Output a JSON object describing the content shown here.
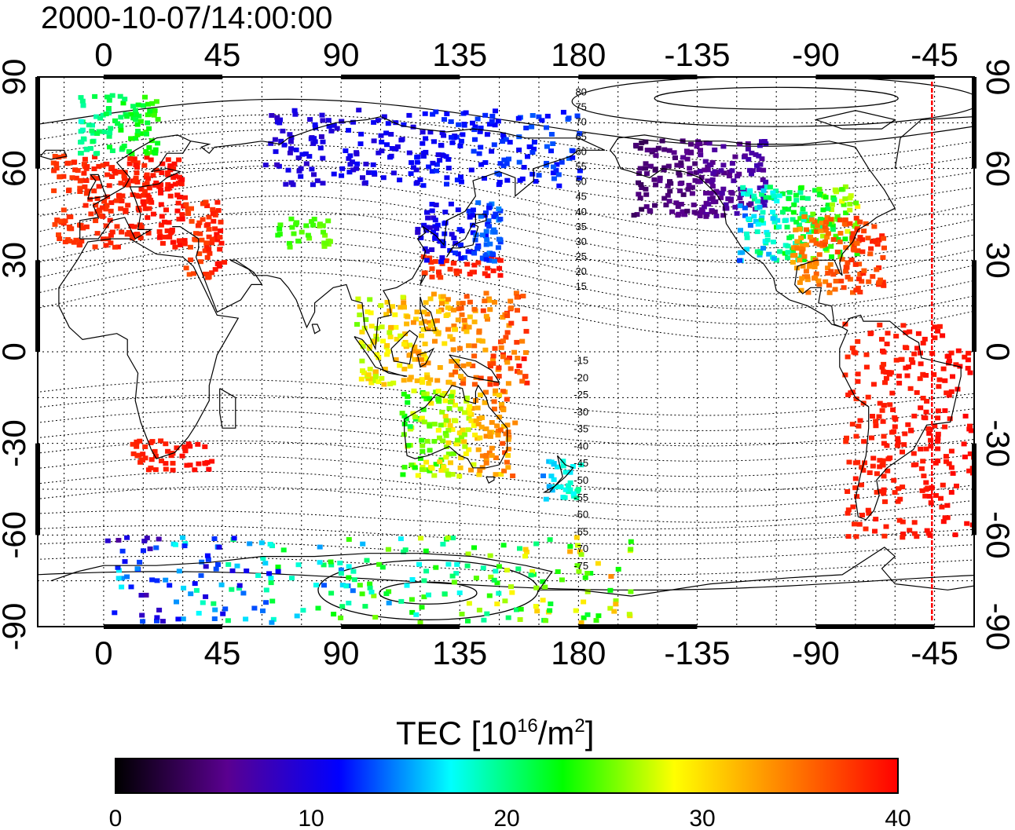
{
  "title": "2000-10-07/14:00:00",
  "map": {
    "lon_ticks": [
      "0",
      "45",
      "90",
      "135",
      "180",
      "-135",
      "-90",
      "-45"
    ],
    "lat_ticks": [
      "90",
      "60",
      "30",
      "0",
      "-30",
      "-60",
      "-90"
    ],
    "lon_range": [
      -25,
      330
    ],
    "lat_range": [
      -90,
      90
    ],
    "grid": "dotted every 15 degrees",
    "contour_labels_north": [
      "80",
      "75",
      "70",
      "65",
      "60",
      "55",
      "50",
      "45",
      "40",
      "35",
      "30",
      "25",
      "20",
      "15"
    ],
    "contour_labels_south": [
      "-15",
      "-20",
      "-25",
      "-30",
      "-35",
      "-40",
      "-45",
      "-50",
      "-55",
      "-60",
      "-65",
      "-70",
      "-75"
    ],
    "terminator_lon": 314,
    "terminator_color": "#ff0000"
  },
  "colorbar": {
    "label_main": "TEC  [10",
    "label_sup1": "16",
    "label_mid": "/m",
    "label_sup2": "2",
    "label_end": "]",
    "min": 0,
    "max": 40,
    "tick_labels": [
      "0",
      "10",
      "20",
      "30",
      "40"
    ],
    "stops": [
      "#000000",
      "#5a0090",
      "#0000ff",
      "#00ffff",
      "#00ff00",
      "#ffff00",
      "#ff8000",
      "#ff0000"
    ]
  },
  "chart_data": {
    "type": "heatmap",
    "title": "2000-10-07/14:00:00",
    "xlabel": "",
    "ylabel": "",
    "x_range": [
      -25,
      330
    ],
    "y_range": [
      -90,
      90
    ],
    "value_range": [
      0,
      40
    ],
    "regions": [
      {
        "lon": [
          -20,
          30
        ],
        "lat": [
          35,
          65
        ],
        "tec": [
          37,
          40
        ]
      },
      {
        "lon": [
          -10,
          20
        ],
        "lat": [
          65,
          85
        ],
        "tec": [
          18,
          25
        ]
      },
      {
        "lon": [
          30,
          45
        ],
        "lat": [
          25,
          50
        ],
        "tec": [
          36,
          40
        ]
      },
      {
        "lon": [
          65,
          85
        ],
        "lat": [
          35,
          45
        ],
        "tec": [
          23,
          26
        ]
      },
      {
        "lon": [
          120,
          150
        ],
        "lat": [
          25,
          32
        ],
        "tec": [
          37,
          40
        ]
      },
      {
        "lon": [
          118,
          150
        ],
        "lat": [
          30,
          50
        ],
        "tec": [
          8,
          15
        ]
      },
      {
        "lon": [
          60,
          180
        ],
        "lat": [
          55,
          80
        ],
        "tec": [
          8,
          14
        ]
      },
      {
        "lon": [
          95,
          160
        ],
        "lat": [
          -10,
          20
        ],
        "tec": [
          25,
          40
        ]
      },
      {
        "lon": [
          112,
          155
        ],
        "lat": [
          -40,
          -12
        ],
        "tec": [
          20,
          38
        ]
      },
      {
        "lon": [
          165,
          180
        ],
        "lat": [
          -48,
          -35
        ],
        "tec": [
          14,
          20
        ]
      },
      {
        "lon": [
          10,
          40
        ],
        "lat": [
          -38,
          -28
        ],
        "tec": [
          38,
          40
        ]
      },
      {
        "lon": [
          200,
          250
        ],
        "lat": [
          45,
          70
        ],
        "tec": [
          3,
          8
        ]
      },
      {
        "lon": [
          240,
          285
        ],
        "lat": [
          30,
          55
        ],
        "tec": [
          12,
          30
        ]
      },
      {
        "lon": [
          260,
          295
        ],
        "lat": [
          20,
          45
        ],
        "tec": [
          32,
          40
        ]
      },
      {
        "lon": [
          280,
          330
        ],
        "lat": [
          -60,
          10
        ],
        "tec": [
          38,
          40
        ]
      },
      {
        "lon": [
          0,
          200
        ],
        "lat": [
          -88,
          -60
        ],
        "tec": [
          5,
          35
        ]
      }
    ]
  }
}
